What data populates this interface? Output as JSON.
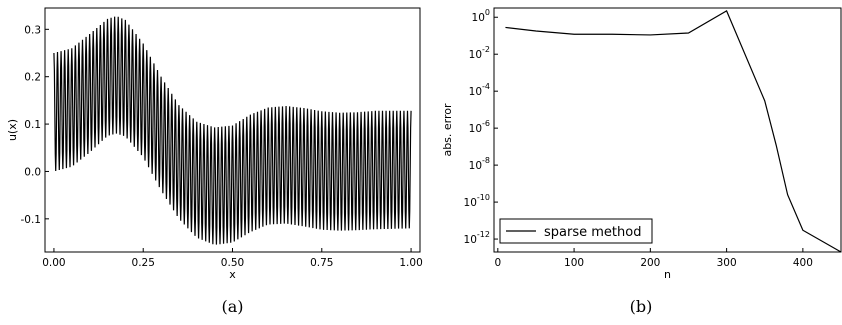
{
  "colors": {
    "line": "#000000",
    "background": "#ffffff"
  },
  "chart_data": [
    {
      "id": "a",
      "type": "line",
      "caption": "(a)",
      "xlabel": "x",
      "ylabel": "u(x)",
      "xlim": [
        -0.025,
        1.025
      ],
      "ylim": [
        -0.17,
        0.345
      ],
      "x_ticks": [
        {
          "value": 0.0,
          "label": "0.00"
        },
        {
          "value": 0.25,
          "label": "0.25"
        },
        {
          "value": 0.5,
          "label": "0.50"
        },
        {
          "value": 0.75,
          "label": "0.75"
        },
        {
          "value": 1.0,
          "label": "1.00"
        }
      ],
      "y_ticks": [
        {
          "value": -0.1,
          "label": "-0.1"
        },
        {
          "value": 0.0,
          "label": "0.0"
        },
        {
          "value": 0.1,
          "label": "0.1"
        },
        {
          "value": 0.2,
          "label": "0.2"
        },
        {
          "value": 0.3,
          "label": "0.3"
        }
      ],
      "oscillation_cycles": 100,
      "series": [
        {
          "upper_envelope": {
            "x": [
              0.0,
              0.05,
              0.1,
              0.15,
              0.175,
              0.2,
              0.25,
              0.3,
              0.35,
              0.4,
              0.45,
              0.5,
              0.55,
              0.6,
              0.65,
              0.7,
              0.75,
              0.8,
              0.85,
              0.9,
              0.95,
              1.0
            ],
            "y": [
              0.25,
              0.26,
              0.29,
              0.322,
              0.328,
              0.32,
              0.27,
              0.2,
              0.14,
              0.105,
              0.093,
              0.097,
              0.12,
              0.135,
              0.138,
              0.134,
              0.127,
              0.124,
              0.125,
              0.128,
              0.128,
              0.128
            ]
          },
          "lower_envelope": {
            "x": [
              0.0,
              0.05,
              0.1,
              0.15,
              0.175,
              0.2,
              0.25,
              0.3,
              0.35,
              0.4,
              0.45,
              0.5,
              0.55,
              0.6,
              0.65,
              0.7,
              0.75,
              0.8,
              0.85,
              0.9,
              0.95,
              1.0
            ],
            "y": [
              0.0,
              0.01,
              0.04,
              0.075,
              0.08,
              0.074,
              0.03,
              -0.04,
              -0.1,
              -0.14,
              -0.155,
              -0.15,
              -0.128,
              -0.112,
              -0.11,
              -0.116,
              -0.123,
              -0.125,
              -0.124,
              -0.122,
              -0.121,
              -0.12
            ]
          }
        }
      ]
    },
    {
      "id": "b",
      "type": "line",
      "caption": "(b)",
      "xlabel": "n",
      "ylabel": "abs. error",
      "yscale": "log",
      "xlim": [
        -5,
        450
      ],
      "ylim_log10": [
        -12.7,
        0.5
      ],
      "x_ticks": [
        {
          "value": 0,
          "label": "0"
        },
        {
          "value": 100,
          "label": "100"
        },
        {
          "value": 200,
          "label": "200"
        },
        {
          "value": 300,
          "label": "300"
        },
        {
          "value": 400,
          "label": "400"
        }
      ],
      "y_ticks": [
        {
          "value": 0,
          "base": "10",
          "exp": "0"
        },
        {
          "value": -2,
          "base": "10",
          "exp": "-2"
        },
        {
          "value": -4,
          "base": "10",
          "exp": "-4"
        },
        {
          "value": -6,
          "base": "10",
          "exp": "-6"
        },
        {
          "value": -8,
          "base": "10",
          "exp": "-8"
        },
        {
          "value": -10,
          "base": "10",
          "exp": "-10"
        },
        {
          "value": -12,
          "base": "10",
          "exp": "-12"
        }
      ],
      "legend": {
        "position": "bottom-left"
      },
      "series": [
        {
          "name": "sparse method",
          "x": [
            10,
            50,
            100,
            150,
            200,
            250,
            300,
            350,
            365,
            380,
            400,
            450
          ],
          "y": [
            0.28,
            0.18,
            0.12,
            0.12,
            0.11,
            0.14,
            2.2,
            3e-05,
            1.2e-07,
            2.5e-10,
            3e-12,
            2e-13
          ]
        }
      ]
    }
  ]
}
